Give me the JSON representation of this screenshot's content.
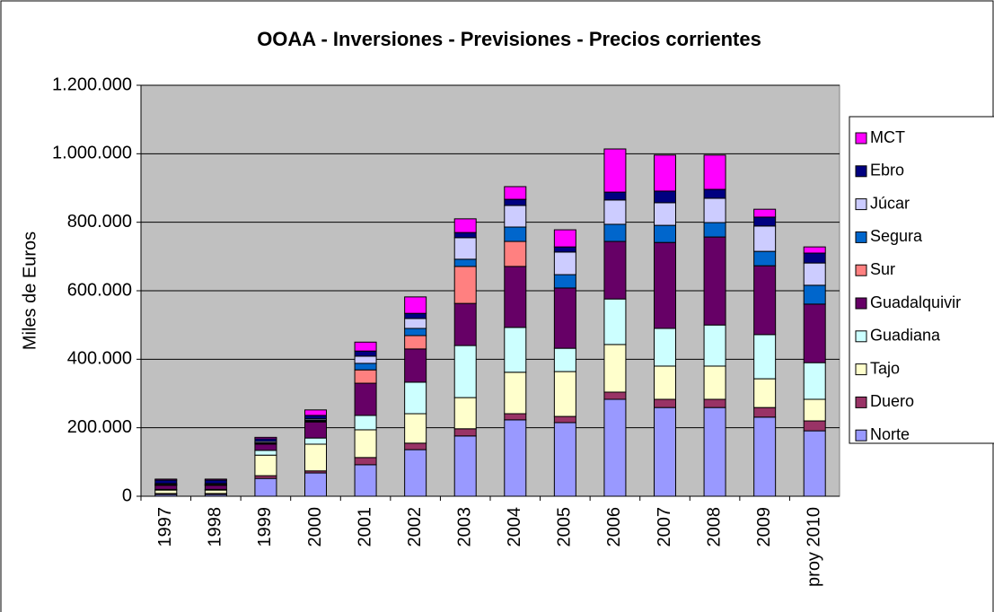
{
  "chart_data": {
    "type": "stacked_bar",
    "title": "OOAA - Inversiones - Previsiones - Precios corrientes",
    "y_label": "Miles de Euros",
    "categories": [
      "1997",
      "1998",
      "1999",
      "2000",
      "2001",
      "2002",
      "2003",
      "2004",
      "2005",
      "2006",
      "2007",
      "2008",
      "2009",
      "proy 2010"
    ],
    "ylim": [
      0,
      1200000
    ],
    "yticks": [
      0,
      {
        "value": 200000,
        "label": "200.000"
      },
      {
        "value": 400000,
        "label": "400.000"
      },
      {
        "value": 600000,
        "label": "600.000"
      },
      {
        "value": 800000,
        "label": "800.000"
      },
      {
        "value": 1000000,
        "label": "1.000.000"
      },
      {
        "value": 1200000,
        "label": "1.200.000"
      }
    ],
    "grid": true,
    "legend": "right",
    "series": [
      {
        "name": "Norte",
        "color": "#9999ff",
        "values": [
          5000,
          5000,
          52000,
          68000,
          92000,
          136000,
          176000,
          223000,
          215000,
          283000,
          259000,
          259000,
          231000,
          191000
        ]
      },
      {
        "name": "Duero",
        "color": "#993366",
        "values": [
          3000,
          3000,
          8000,
          6000,
          21000,
          19000,
          21000,
          18000,
          18000,
          21000,
          24000,
          24000,
          28000,
          29000
        ]
      },
      {
        "name": "Tajo",
        "color": "#ffffcc",
        "values": [
          10000,
          10000,
          60000,
          78000,
          81000,
          86000,
          91000,
          121000,
          131000,
          139000,
          97000,
          97000,
          84000,
          63000
        ]
      },
      {
        "name": "Guadiana",
        "color": "#ccffff",
        "values": [
          2000,
          2000,
          14000,
          18000,
          42000,
          92000,
          152000,
          131000,
          68000,
          133000,
          110000,
          120000,
          129000,
          107000
        ]
      },
      {
        "name": "Guadalquivir",
        "color": "#660066",
        "values": [
          12000,
          12000,
          18000,
          47000,
          94000,
          97000,
          123000,
          178000,
          176000,
          168000,
          251000,
          257000,
          201000,
          171000
        ]
      },
      {
        "name": "Sur",
        "color": "#ff8080",
        "values": [
          1000,
          1000,
          2000,
          2000,
          39000,
          39000,
          108000,
          73000,
          0,
          0,
          0,
          0,
          0,
          0
        ]
      },
      {
        "name": "Segura",
        "color": "#0066cc",
        "values": [
          1000,
          1000,
          2000,
          3000,
          19000,
          21000,
          21000,
          42000,
          39000,
          50000,
          50000,
          42000,
          42000,
          55000
        ]
      },
      {
        "name": "Júcar",
        "color": "#ccccff",
        "values": [
          3000,
          3000,
          4000,
          4000,
          21000,
          29000,
          63000,
          63000,
          66000,
          71000,
          66000,
          71000,
          74000,
          65000
        ]
      },
      {
        "name": "Ebro",
        "color": "#000080",
        "values": [
          10000,
          10000,
          8000,
          10000,
          15000,
          15000,
          15000,
          18000,
          15000,
          23000,
          34000,
          26000,
          26000,
          29000
        ]
      },
      {
        "name": "MCT",
        "color": "#ff00ff",
        "values": [
          3000,
          3000,
          4000,
          16000,
          26000,
          48000,
          40000,
          37000,
          50000,
          126000,
          105000,
          100000,
          23000,
          18000
        ]
      }
    ]
  }
}
